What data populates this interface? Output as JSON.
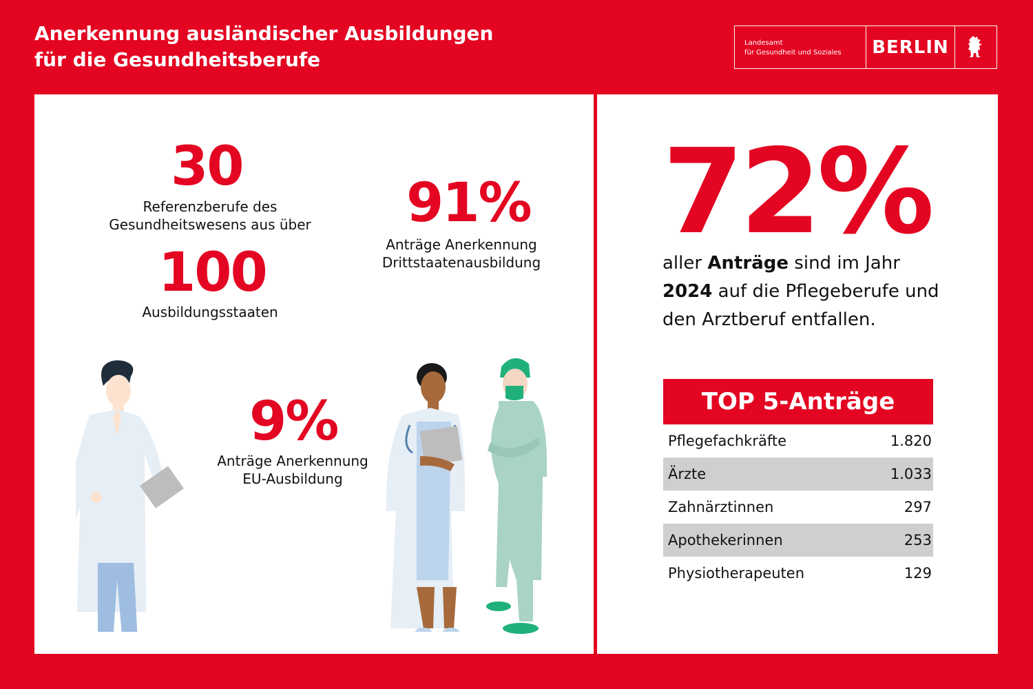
{
  "header": {
    "title_line1": "Anerkennung ausländischer Ausbildungen",
    "title_line2": "für die Gesundheitsberufe",
    "logo_agency_line1": "Landesamt",
    "logo_agency_line2": "für Gesundheit und Soziales",
    "logo_city": "BERLIN"
  },
  "left": {
    "stat1_value": "30",
    "stat1_caption_line1": "Referenzberufe des",
    "stat1_caption_line2": "Gesundheitswesens aus über",
    "stat2_value": "100",
    "stat2_caption": "Ausbildungsstaaten",
    "stat3_value": "91%",
    "stat3_caption_line1": "Anträge Anerkennung",
    "stat3_caption_line2": "Drittstaatenausbildung",
    "stat4_value": "9%",
    "stat4_caption_line1": "Anträge Anerkennung",
    "stat4_caption_line2": "EU-Ausbildung"
  },
  "right": {
    "big_value": "72%",
    "sentence": {
      "p1": "aller ",
      "b1": "Anträge",
      "p2": " sind im Jahr ",
      "b2": "2024",
      "p3": " auf die Pflegeberufe und den Arztberuf entfallen."
    },
    "top5": {
      "title": "TOP 5-Anträge",
      "rows": [
        {
          "label": "Pflegefachkräfte",
          "value": "1.820"
        },
        {
          "label": "Ärzte",
          "value": "1.033"
        },
        {
          "label": "Zahnärztinnen",
          "value": "297"
        },
        {
          "label": "Apothekerinnen",
          "value": "253"
        },
        {
          "label": "Physiotherapeuten",
          "value": "129"
        }
      ]
    }
  },
  "colors": {
    "brand_red": "#e30521",
    "row_shade": "#cfcfcf"
  },
  "icons": [
    "berlin-bear-icon",
    "doctor-illustration",
    "female-doctor-illustration",
    "surgeon-illustration"
  ]
}
